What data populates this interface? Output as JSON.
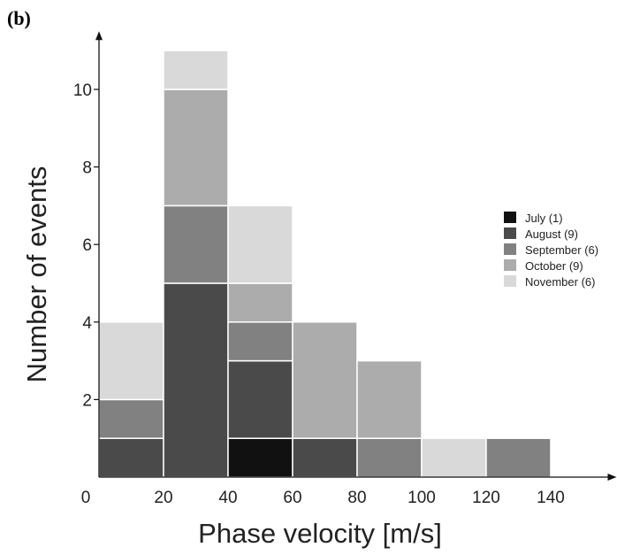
{
  "panel_label": "(b)",
  "chart_data": {
    "type": "bar",
    "stacked": true,
    "xlabel": "Phase velocity [m/s]",
    "ylabel": "Number of events",
    "xlim": [
      0,
      150
    ],
    "ylim": [
      0,
      11
    ],
    "x_ticks": [
      0,
      20,
      40,
      60,
      80,
      100,
      120,
      140
    ],
    "y_ticks": [
      2,
      4,
      6,
      8,
      10
    ],
    "bins": [
      [
        0,
        20
      ],
      [
        20,
        40
      ],
      [
        40,
        60
      ],
      [
        60,
        80
      ],
      [
        80,
        100
      ],
      [
        100,
        120
      ],
      [
        120,
        140
      ]
    ],
    "series": [
      {
        "name": "July (1)",
        "color": "#111111",
        "values": [
          0,
          0,
          1,
          0,
          0,
          0,
          0
        ]
      },
      {
        "name": "August (9)",
        "color": "#4a4a4a",
        "values": [
          1,
          5,
          2,
          1,
          0,
          0,
          0
        ]
      },
      {
        "name": "September (6)",
        "color": "#818181",
        "values": [
          1,
          2,
          1,
          0,
          1,
          0,
          1
        ]
      },
      {
        "name": "October (9)",
        "color": "#acacac",
        "values": [
          0,
          3,
          1,
          3,
          2,
          0,
          0
        ]
      },
      {
        "name": "November (6)",
        "color": "#d9d9d9",
        "values": [
          2,
          1,
          2,
          0,
          0,
          1,
          0
        ]
      }
    ],
    "legend_position": "right"
  }
}
